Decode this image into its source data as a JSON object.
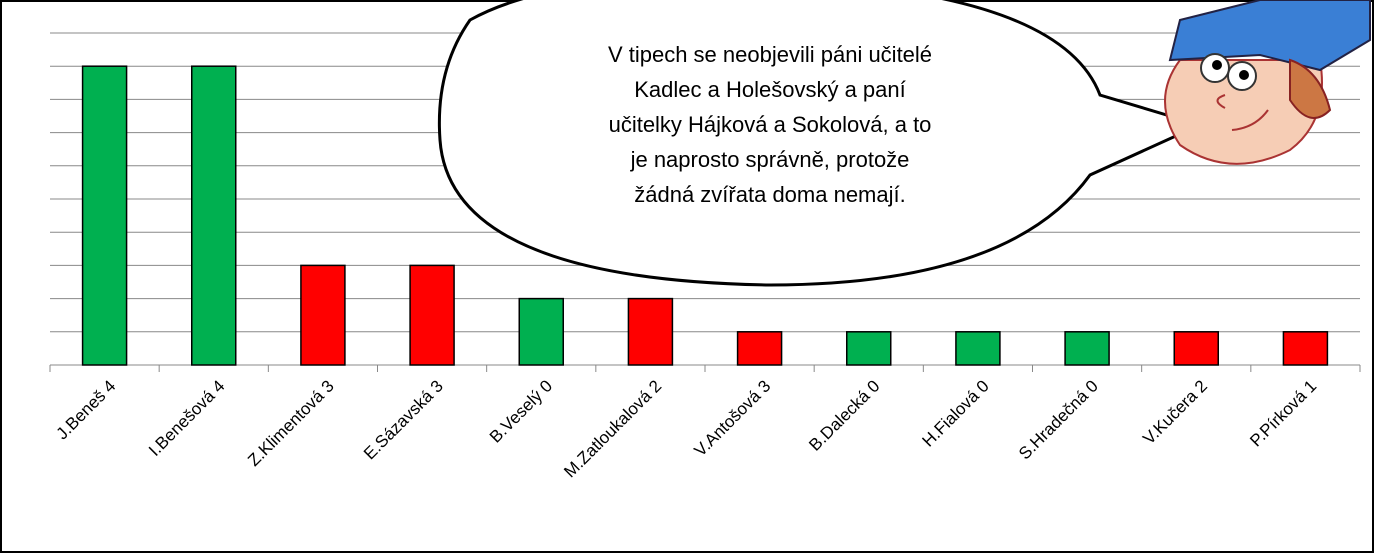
{
  "chart_data": {
    "type": "bar",
    "categories": [
      "J.Beneš 4",
      "I.Benešová 4",
      "Z.Klimentová 3",
      "E.Sázavská 3",
      "B.Veselý 0",
      "M.Zatloukalová 2",
      "V.Antošová 3",
      "B.Dalecká 0",
      "H.Fialová 0",
      "S.Hradečná 0",
      "V.Kučera 2",
      "P.Pírková 1"
    ],
    "values": [
      9,
      9,
      3,
      3,
      2,
      2,
      1,
      1,
      1,
      1,
      1,
      1
    ],
    "colors": [
      "#00b050",
      "#00b050",
      "#ff0000",
      "#ff0000",
      "#00b050",
      "#ff0000",
      "#ff0000",
      "#00b050",
      "#00b050",
      "#00b050",
      "#ff0000",
      "#ff0000"
    ],
    "ylim": [
      0,
      10
    ],
    "yticks": [
      0,
      1,
      2,
      3,
      4,
      5,
      6,
      7,
      8,
      9,
      10
    ],
    "grid": true,
    "annotation": [
      "V tipech se neobjevili páni učitelé",
      "Kadlec a Holešovský a paní",
      "učitelky Hájková a Sokolová, a to",
      "je naprosto správně, protože",
      "žádná zvířata doma nemají."
    ]
  }
}
